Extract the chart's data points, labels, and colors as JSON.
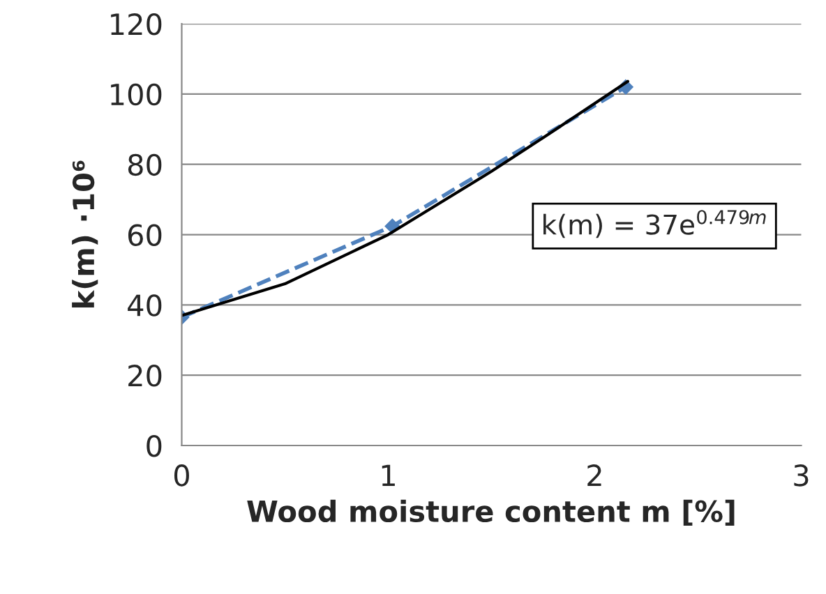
{
  "chart_data": {
    "type": "line",
    "xlabel": "Wood moisture content m [%]",
    "ylabel": "k(m) ·10⁶",
    "xlim": [
      0,
      3
    ],
    "xticks": [
      0,
      1,
      2,
      3
    ],
    "ylim": [
      0,
      120
    ],
    "yticks": [
      0,
      20,
      40,
      60,
      80,
      100,
      120
    ],
    "grid": "y",
    "annotations": [
      "k(m) = 37e$^{0.479m}$"
    ],
    "series": [
      {
        "color": "#4f81bd",
        "marker": "diamond",
        "line_style": "dashed",
        "x": [
          0,
          1.02,
          2.15
        ],
        "values": [
          36.5,
          62.4,
          102
        ]
      },
      {
        "color": "#000000",
        "marker": "none",
        "line_style": "solid",
        "x": [
          0,
          0.5,
          1,
          1.5,
          1.78,
          2.16
        ],
        "values": [
          37,
          46,
          60,
          78,
          88.7,
          103.6
        ]
      }
    ]
  }
}
